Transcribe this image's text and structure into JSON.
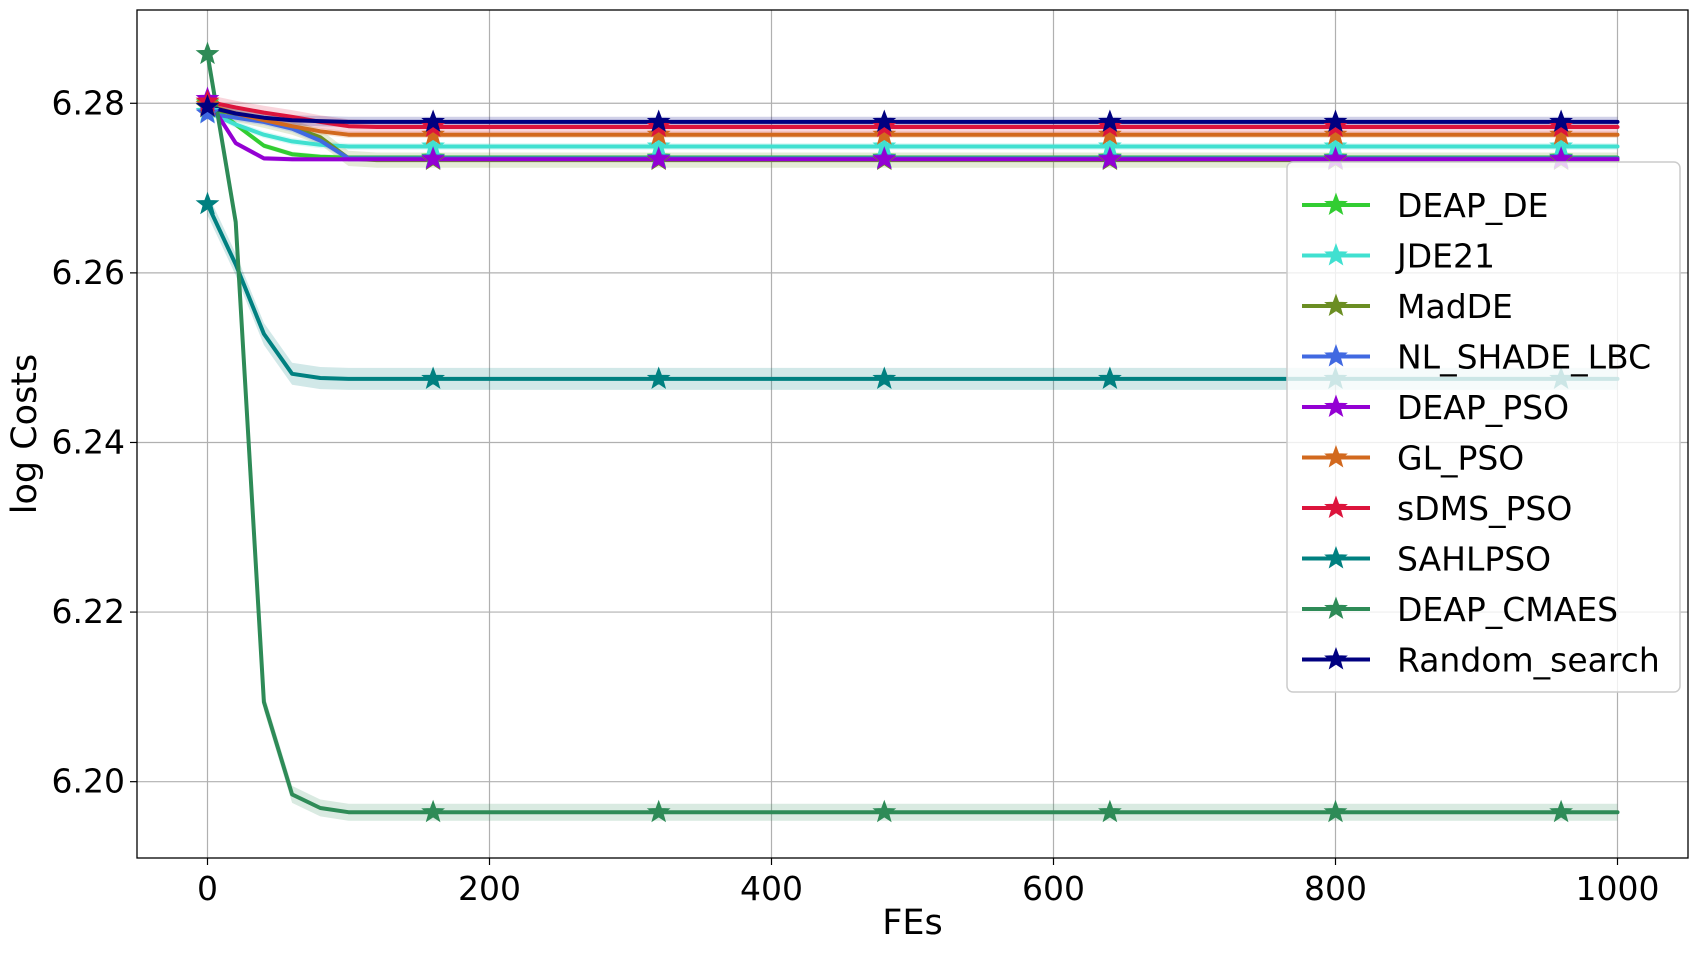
{
  "chart_data": {
    "type": "line",
    "title": "",
    "xlabel": "FEs",
    "ylabel": "log Costs",
    "xlim": [
      -50,
      1050
    ],
    "ylim": [
      6.191,
      6.291
    ],
    "xticks": [
      0,
      200,
      400,
      600,
      800,
      1000
    ],
    "yticks": [
      6.2,
      6.22,
      6.24,
      6.26,
      6.28
    ],
    "xtick_labels": [
      "0",
      "200",
      "400",
      "600",
      "800",
      "1000"
    ],
    "ytick_labels": [
      "6.20",
      "6.22",
      "6.24",
      "6.26",
      "6.28"
    ],
    "grid": true,
    "legend_position": "right",
    "marker": "star",
    "marker_x": [
      0,
      160,
      320,
      480,
      640,
      800,
      960
    ],
    "x": [
      0,
      20,
      40,
      60,
      80,
      100,
      120,
      140,
      160,
      180,
      200,
      300,
      400,
      500,
      600,
      700,
      800,
      900,
      1000
    ],
    "series": [
      {
        "name": "DEAP_DE",
        "color": "#32cd32",
        "values": [
          6.28,
          6.2775,
          6.275,
          6.274,
          6.2737,
          6.2736,
          6.2736,
          6.2736,
          6.2736,
          6.2736,
          6.2736,
          6.2736,
          6.2736,
          6.2736,
          6.2736,
          6.2736,
          6.2736,
          6.2736,
          6.2736
        ],
        "band": 0.0003
      },
      {
        "name": "JDE21",
        "color": "#40e0d0",
        "values": [
          6.279,
          6.2775,
          6.2763,
          6.2755,
          6.2751,
          6.2749,
          6.2749,
          6.2749,
          6.2749,
          6.2749,
          6.2749,
          6.2749,
          6.2749,
          6.2749,
          6.2749,
          6.2749,
          6.2749,
          6.2749,
          6.2749
        ],
        "band": 0.0004
      },
      {
        "name": "MadDE",
        "color": "#6b8e23",
        "values": [
          6.2795,
          6.2787,
          6.278,
          6.2772,
          6.276,
          6.2735,
          6.2733,
          6.2733,
          6.2733,
          6.2733,
          6.2733,
          6.2733,
          6.2733,
          6.2733,
          6.2733,
          6.2733,
          6.2733,
          6.2733,
          6.2733
        ],
        "band": 0.0009
      },
      {
        "name": "NL_SHADE_LBC",
        "color": "#4169e1",
        "values": [
          6.2788,
          6.2783,
          6.2778,
          6.277,
          6.2756,
          6.2735,
          6.2735,
          6.2735,
          6.2735,
          6.2735,
          6.2735,
          6.2735,
          6.2735,
          6.2735,
          6.2735,
          6.2735,
          6.2735,
          6.2735,
          6.2735
        ],
        "band": 0.0004
      },
      {
        "name": "DEAP_PSO",
        "color": "#9400d3",
        "values": [
          6.2805,
          6.2753,
          6.2735,
          6.2734,
          6.2734,
          6.2734,
          6.2734,
          6.2734,
          6.2734,
          6.2734,
          6.2734,
          6.2734,
          6.2734,
          6.2734,
          6.2734,
          6.2734,
          6.2734,
          6.2734,
          6.2734
        ],
        "band": 0.0003
      },
      {
        "name": "GL_PSO",
        "color": "#d2691e",
        "values": [
          6.2798,
          6.2788,
          6.278,
          6.2773,
          6.2767,
          6.2763,
          6.2763,
          6.2763,
          6.2763,
          6.2763,
          6.2763,
          6.2763,
          6.2763,
          6.2763,
          6.2763,
          6.2763,
          6.2763,
          6.2763,
          6.2763
        ],
        "band": 0.0004
      },
      {
        "name": "sDMS_PSO",
        "color": "#dc143c",
        "values": [
          6.2802,
          6.2795,
          6.2789,
          6.2784,
          6.2778,
          6.2773,
          6.2772,
          6.2772,
          6.2772,
          6.2772,
          6.2772,
          6.2772,
          6.2772,
          6.2772,
          6.2772,
          6.2772,
          6.2772,
          6.2772,
          6.2772
        ],
        "band": 0.0008
      },
      {
        "name": "SAHLPSO",
        "color": "#008080",
        "values": [
          6.2681,
          6.261,
          6.2528,
          6.2481,
          6.2476,
          6.2475,
          6.2475,
          6.2475,
          6.2475,
          6.2475,
          6.2475,
          6.2475,
          6.2475,
          6.2475,
          6.2475,
          6.2475,
          6.2475,
          6.2475,
          6.2475
        ],
        "band": 0.0013
      },
      {
        "name": "DEAP_CMAES",
        "color": "#2e8b57",
        "values": [
          6.2858,
          6.266,
          6.2094,
          6.1985,
          6.1969,
          6.1964,
          6.1964,
          6.1964,
          6.1964,
          6.1964,
          6.1964,
          6.1964,
          6.1964,
          6.1964,
          6.1964,
          6.1964,
          6.1964,
          6.1964,
          6.1964
        ],
        "band": 0.001
      },
      {
        "name": "Random_search",
        "color": "#000080",
        "values": [
          6.2796,
          6.2788,
          6.2783,
          6.278,
          6.2779,
          6.2778,
          6.2778,
          6.2778,
          6.2778,
          6.2778,
          6.2778,
          6.2778,
          6.2778,
          6.2778,
          6.2778,
          6.2778,
          6.2778,
          6.2778,
          6.2778
        ],
        "band": 0.0006
      }
    ]
  }
}
